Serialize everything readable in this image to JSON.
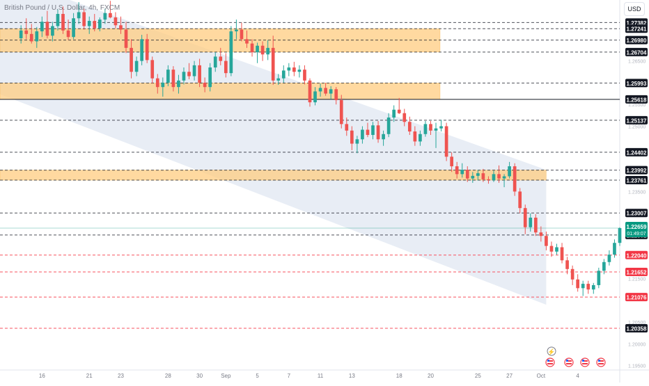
{
  "header": {
    "symbol_title": "British Pound / U.S. Dollar, 4h, FXCM",
    "currency": "USD"
  },
  "colors": {
    "up": "#26a69a",
    "down": "#ef5350",
    "zone": "#ffcc80",
    "channel": "#d6deed",
    "neutral_label": "#131722",
    "red_label": "#f23645",
    "last_price": "#089981",
    "red_line": "#f7525f"
  },
  "chart_data": {
    "type": "candlestick",
    "title": "British Pound / U.S. Dollar, 4h, FXCM",
    "ylim": [
      1.194,
      1.279
    ],
    "y_ticks": [
      "1.26500",
      "1.25500",
      "1.25000",
      "1.23500",
      "1.21500",
      "1.20500",
      "1.20000",
      "1.19500"
    ],
    "x_ticks": [
      {
        "label": "16",
        "i": 4
      },
      {
        "label": "21",
        "i": 13
      },
      {
        "label": "23",
        "i": 19
      },
      {
        "label": "28",
        "i": 28
      },
      {
        "label": "30",
        "i": 34
      },
      {
        "label": "Sep",
        "i": 39
      },
      {
        "label": "5",
        "i": 45
      },
      {
        "label": "7",
        "i": 51
      },
      {
        "label": "11",
        "i": 57
      },
      {
        "label": "13",
        "i": 63
      },
      {
        "label": "18",
        "i": 72
      },
      {
        "label": "20",
        "i": 78
      },
      {
        "label": "25",
        "i": 87
      },
      {
        "label": "27",
        "i": 93
      },
      {
        "label": "Oct",
        "i": 99
      },
      {
        "label": "4",
        "i": 106
      }
    ],
    "zones": [
      {
        "from": 1.26704,
        "to": 1.27241,
        "color": "#ffcc80"
      },
      {
        "from": 1.25618,
        "to": 1.25993,
        "color": "#ffcc80"
      },
      {
        "from": 1.23761,
        "to": 1.23992,
        "color": "#ffcc80"
      }
    ],
    "channel": {
      "upper": [
        [
          0,
          1.283
        ],
        [
          100,
          1.24
        ]
      ],
      "lower": [
        [
          0,
          1.2555
        ],
        [
          100,
          1.209
        ]
      ],
      "end_i": 100
    },
    "price_lines": [
      {
        "value": "1.27382",
        "style": "dashed",
        "color": "#131722",
        "label_bg": "#131722"
      },
      {
        "value": "1.27241",
        "style": "dashed",
        "color": "#131722",
        "label_bg": "#131722"
      },
      {
        "value": "1.26980",
        "style": "dashed",
        "color": "#131722",
        "label_bg": "#131722"
      },
      {
        "value": "1.26704",
        "style": "dashed",
        "color": "#131722",
        "label_bg": "#131722"
      },
      {
        "value": "1.25993",
        "style": "dashed",
        "color": "#131722",
        "label_bg": "#131722"
      },
      {
        "value": "1.25618",
        "style": "solid",
        "color": "#131722",
        "label_bg": "#131722"
      },
      {
        "value": "1.25137",
        "style": "dashed",
        "color": "#131722",
        "label_bg": "#131722"
      },
      {
        "value": "1.24402",
        "style": "dashed",
        "color": "#131722",
        "label_bg": "#131722"
      },
      {
        "value": "1.23992",
        "style": "dashed",
        "color": "#131722",
        "label_bg": "#131722"
      },
      {
        "value": "1.23761",
        "style": "dashed",
        "color": "#131722",
        "label_bg": "#131722"
      },
      {
        "value": "1.23007",
        "style": "dashed",
        "color": "#131722",
        "label_bg": "#131722"
      },
      {
        "value": "1.22501",
        "style": "dashed",
        "color": "#131722",
        "label_bg": "#131722"
      },
      {
        "value": "1.22040",
        "style": "dashed",
        "color": "#f7525f",
        "label_bg": "#f23645"
      },
      {
        "value": "1.21652",
        "style": "dashed",
        "color": "#f7525f",
        "label_bg": "#f23645"
      },
      {
        "value": "1.21076",
        "style": "dashed",
        "color": "#f7525f",
        "label_bg": "#f23645"
      },
      {
        "value": "1.20358",
        "style": "dashed",
        "color": "#f7525f",
        "label_bg": "#131722"
      }
    ],
    "last_price": {
      "value": "1.22659",
      "countdown": "01:49:07"
    },
    "candles": [
      [
        1.2702,
        1.2732,
        1.269,
        1.272
      ],
      [
        1.272,
        1.2748,
        1.27,
        1.2712
      ],
      [
        1.2712,
        1.2735,
        1.269,
        1.2695
      ],
      [
        1.2695,
        1.2728,
        1.268,
        1.2718
      ],
      [
        1.2718,
        1.2752,
        1.2705,
        1.274
      ],
      [
        1.274,
        1.2765,
        1.2702,
        1.2708
      ],
      [
        1.2708,
        1.274,
        1.2695,
        1.273
      ],
      [
        1.273,
        1.2768,
        1.272,
        1.2758
      ],
      [
        1.2758,
        1.2775,
        1.2712,
        1.272
      ],
      [
        1.272,
        1.2745,
        1.2698,
        1.2705
      ],
      [
        1.2705,
        1.276,
        1.27,
        1.2748
      ],
      [
        1.2748,
        1.2785,
        1.2735,
        1.2762
      ],
      [
        1.2762,
        1.277,
        1.2722,
        1.273
      ],
      [
        1.273,
        1.2752,
        1.2712,
        1.2742
      ],
      [
        1.2742,
        1.2758,
        1.2718,
        1.2725
      ],
      [
        1.2725,
        1.275,
        1.2718,
        1.2745
      ],
      [
        1.2745,
        1.277,
        1.2735,
        1.276
      ],
      [
        1.276,
        1.2788,
        1.2748,
        1.275
      ],
      [
        1.275,
        1.2762,
        1.2725,
        1.2732
      ],
      [
        1.2732,
        1.2752,
        1.2712,
        1.2722
      ],
      [
        1.2722,
        1.274,
        1.2668,
        1.268
      ],
      [
        1.268,
        1.27,
        1.261,
        1.2625
      ],
      [
        1.2625,
        1.266,
        1.2615,
        1.265
      ],
      [
        1.265,
        1.271,
        1.264,
        1.27
      ],
      [
        1.27,
        1.2712,
        1.2645,
        1.2652
      ],
      [
        1.2652,
        1.266,
        1.2598,
        1.261
      ],
      [
        1.261,
        1.262,
        1.2575,
        1.259
      ],
      [
        1.259,
        1.2612,
        1.2568,
        1.26
      ],
      [
        1.26,
        1.264,
        1.2592,
        1.263
      ],
      [
        1.263,
        1.2638,
        1.258,
        1.259
      ],
      [
        1.259,
        1.2618,
        1.2575,
        1.2605
      ],
      [
        1.2605,
        1.2635,
        1.2596,
        1.2625
      ],
      [
        1.2625,
        1.2645,
        1.2608,
        1.2615
      ],
      [
        1.2615,
        1.265,
        1.2605,
        1.264
      ],
      [
        1.264,
        1.2655,
        1.259,
        1.26
      ],
      [
        1.26,
        1.2612,
        1.2578,
        1.259
      ],
      [
        1.259,
        1.2645,
        1.258,
        1.2635
      ],
      [
        1.2635,
        1.267,
        1.2625,
        1.266
      ],
      [
        1.266,
        1.268,
        1.264,
        1.265
      ],
      [
        1.265,
        1.2668,
        1.2612,
        1.2622
      ],
      [
        1.2622,
        1.273,
        1.2615,
        1.2718
      ],
      [
        1.2718,
        1.2745,
        1.27,
        1.2722
      ],
      [
        1.2722,
        1.2738,
        1.2695,
        1.27
      ],
      [
        1.27,
        1.272,
        1.268,
        1.269
      ],
      [
        1.269,
        1.27,
        1.266,
        1.267
      ],
      [
        1.267,
        1.2692,
        1.2645,
        1.2685
      ],
      [
        1.2685,
        1.2695,
        1.265,
        1.2665
      ],
      [
        1.2665,
        1.2698,
        1.2652,
        1.268
      ],
      [
        1.268,
        1.2708,
        1.2595,
        1.2605
      ],
      [
        1.2605,
        1.262,
        1.2595,
        1.261
      ],
      [
        1.261,
        1.264,
        1.26,
        1.2628
      ],
      [
        1.2628,
        1.2645,
        1.2615,
        1.2635
      ],
      [
        1.2635,
        1.2648,
        1.2615,
        1.2625
      ],
      [
        1.2625,
        1.264,
        1.2612,
        1.263
      ],
      [
        1.263,
        1.264,
        1.2596,
        1.2605
      ],
      [
        1.2605,
        1.261,
        1.2545,
        1.2555
      ],
      [
        1.2555,
        1.259,
        1.2548,
        1.258
      ],
      [
        1.258,
        1.2598,
        1.2568,
        1.2588
      ],
      [
        1.2588,
        1.26,
        1.257,
        1.2575
      ],
      [
        1.2575,
        1.2592,
        1.2562,
        1.2585
      ],
      [
        1.2585,
        1.259,
        1.255,
        1.256
      ],
      [
        1.256,
        1.2572,
        1.2495,
        1.2505
      ],
      [
        1.2505,
        1.252,
        1.2478,
        1.249
      ],
      [
        1.249,
        1.25,
        1.2445,
        1.246
      ],
      [
        1.246,
        1.2478,
        1.2438,
        1.247
      ],
      [
        1.247,
        1.25,
        1.246,
        1.2492
      ],
      [
        1.2492,
        1.2508,
        1.2475,
        1.248
      ],
      [
        1.248,
        1.251,
        1.247,
        1.2502
      ],
      [
        1.2502,
        1.2512,
        1.2462,
        1.247
      ],
      [
        1.247,
        1.249,
        1.2455,
        1.2482
      ],
      [
        1.2482,
        1.253,
        1.2475,
        1.252
      ],
      [
        1.252,
        1.2548,
        1.251,
        1.2538
      ],
      [
        1.2538,
        1.2565,
        1.2528,
        1.253
      ],
      [
        1.253,
        1.254,
        1.25,
        1.251
      ],
      [
        1.251,
        1.2522,
        1.248,
        1.2488
      ],
      [
        1.2488,
        1.25,
        1.2455,
        1.2465
      ],
      [
        1.2465,
        1.249,
        1.2455,
        1.2482
      ],
      [
        1.2482,
        1.2512,
        1.2476,
        1.2505
      ],
      [
        1.2505,
        1.2512,
        1.248,
        1.249
      ],
      [
        1.249,
        1.2508,
        1.245,
        1.2495
      ],
      [
        1.2495,
        1.2515,
        1.2488,
        1.25
      ],
      [
        1.25,
        1.2508,
        1.242,
        1.243
      ],
      [
        1.243,
        1.244,
        1.2395,
        1.2408
      ],
      [
        1.2408,
        1.2418,
        1.238,
        1.239
      ],
      [
        1.239,
        1.2415,
        1.2382,
        1.24
      ],
      [
        1.24,
        1.2408,
        1.2372,
        1.238
      ],
      [
        1.238,
        1.2395,
        1.237,
        1.2386
      ],
      [
        1.2386,
        1.24,
        1.2375,
        1.2392
      ],
      [
        1.2392,
        1.2402,
        1.2372,
        1.2378
      ],
      [
        1.2378,
        1.2385,
        1.2368,
        1.2376
      ],
      [
        1.2376,
        1.2398,
        1.2372,
        1.239
      ],
      [
        1.239,
        1.241,
        1.237,
        1.238
      ],
      [
        1.238,
        1.239,
        1.236,
        1.2385
      ],
      [
        1.2385,
        1.2418,
        1.238,
        1.2408
      ],
      [
        1.2408,
        1.2415,
        1.234,
        1.235
      ],
      [
        1.235,
        1.2358,
        1.23,
        1.2312
      ],
      [
        1.2312,
        1.232,
        1.2252,
        1.2268
      ],
      [
        1.2268,
        1.23,
        1.2258,
        1.229
      ],
      [
        1.229,
        1.2298,
        1.2248,
        1.2256
      ],
      [
        1.2256,
        1.227,
        1.2235,
        1.2248
      ],
      [
        1.2248,
        1.2258,
        1.2215,
        1.2225
      ],
      [
        1.2225,
        1.2235,
        1.22,
        1.2212
      ],
      [
        1.2212,
        1.223,
        1.2205,
        1.2222
      ],
      [
        1.2222,
        1.2232,
        1.2185,
        1.2192
      ],
      [
        1.2192,
        1.22,
        1.216,
        1.2172
      ],
      [
        1.2172,
        1.218,
        1.2135,
        1.2148
      ],
      [
        1.2148,
        1.216,
        1.212,
        1.2128
      ],
      [
        1.2128,
        1.2145,
        1.211,
        1.2138
      ],
      [
        1.2138,
        1.2145,
        1.2115,
        1.2125
      ],
      [
        1.2125,
        1.214,
        1.2115,
        1.2135
      ],
      [
        1.2135,
        1.2175,
        1.2128,
        1.2168
      ],
      [
        1.2168,
        1.2195,
        1.216,
        1.2188
      ],
      [
        1.2188,
        1.2215,
        1.218,
        1.2205
      ],
      [
        1.2205,
        1.224,
        1.2198,
        1.2232
      ],
      [
        1.2232,
        1.2268,
        1.2225,
        1.2266
      ]
    ],
    "x_range": [
      -4,
      114
    ]
  },
  "bottom_events": {
    "flash": "⚡"
  }
}
